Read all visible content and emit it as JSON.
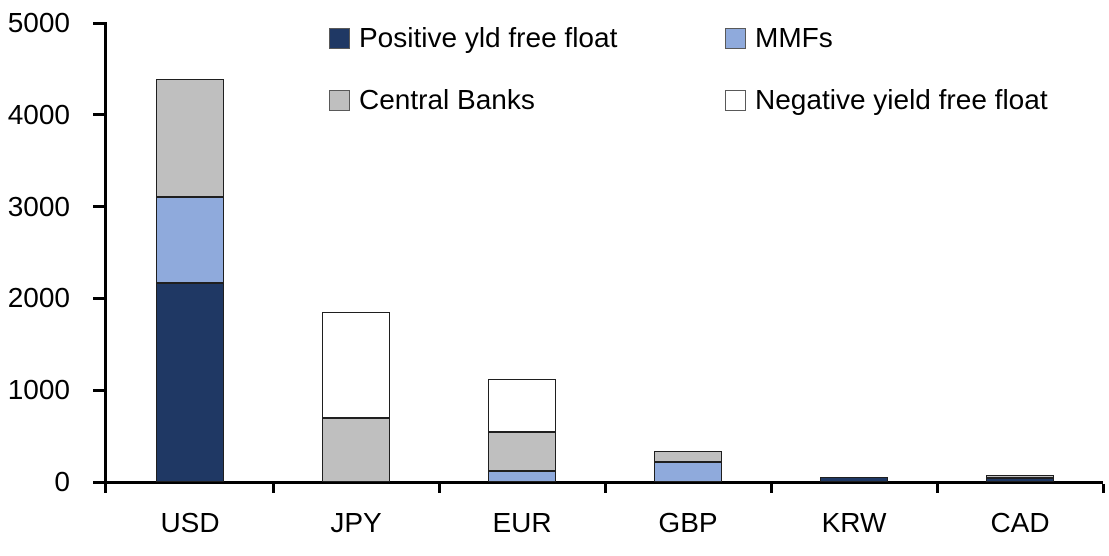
{
  "chart_data": {
    "type": "bar",
    "stacked": true,
    "title": "",
    "xlabel": "",
    "ylabel": "",
    "categories": [
      "USD",
      "JPY",
      "EUR",
      "GBP",
      "KRW",
      "CAD"
    ],
    "series": [
      {
        "name": "Positive yld free float",
        "color": "#1F3864",
        "values": [
          2170,
          0,
          0,
          0,
          50,
          40
        ]
      },
      {
        "name": "MMFs",
        "color": "#8FAADC",
        "values": [
          940,
          0,
          120,
          220,
          0,
          0
        ]
      },
      {
        "name": "Central Banks",
        "color": "#BFBFBF",
        "values": [
          1280,
          700,
          430,
          120,
          0,
          40
        ]
      },
      {
        "name": "Negative yield free float",
        "color": "#FFFFFF",
        "values": [
          0,
          1150,
          570,
          0,
          0,
          0
        ]
      }
    ],
    "totals": {
      "USD": 4390,
      "JPY": 1850,
      "EUR": 1120,
      "GBP": 340,
      "KRW": 50,
      "CAD": 80
    },
    "ylim": [
      0,
      5000
    ],
    "yticks": [
      0,
      1000,
      2000,
      3000,
      4000,
      5000
    ],
    "ytick_labels": [
      "0",
      "1000",
      "2000",
      "3000",
      "4000",
      "5000"
    ],
    "grid": false,
    "legend_position": "top",
    "legend_rows": [
      [
        "Positive yld free float",
        "MMFs"
      ],
      [
        "Central Banks",
        "Negative yield free float"
      ]
    ],
    "axis_color": "#000000",
    "segment_border_color": "#1f1f1f",
    "background_color": "#FFFFFF"
  }
}
